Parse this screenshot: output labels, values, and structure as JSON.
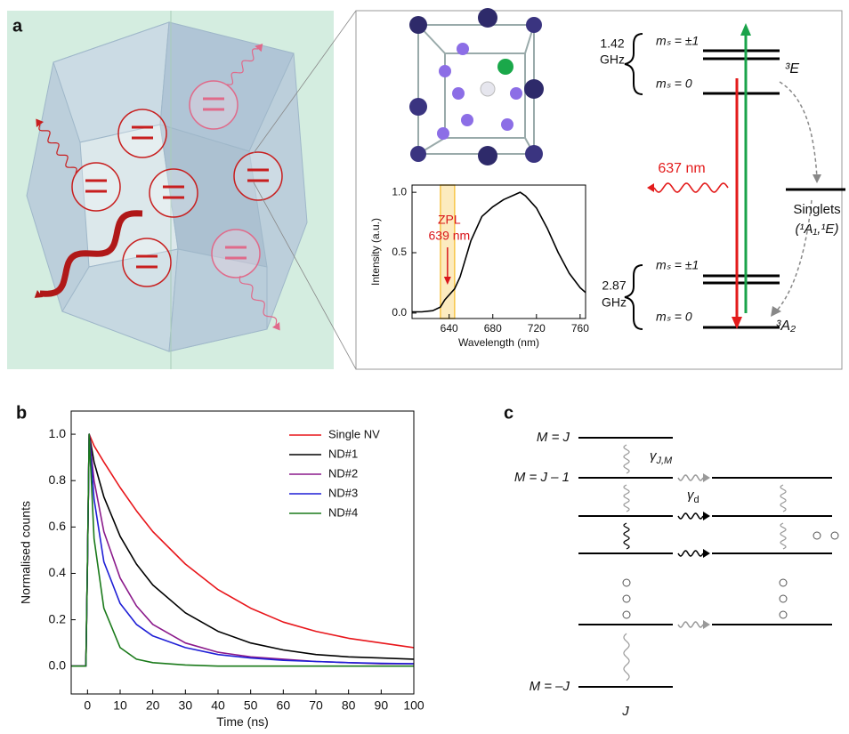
{
  "panel_labels": [
    "a",
    "b",
    "c"
  ],
  "energy_diagram": {
    "upper_splitting": "1.42",
    "upper_unit": "GHz",
    "upper_ms_pm1": "mₛ = ±1",
    "upper_ms_0": "mₛ = 0",
    "upper_state": "³E",
    "emission": "637 nm",
    "singlets": "Singlets",
    "singlet_states": "(¹A₁,¹E)",
    "lower_splitting": "2.87",
    "lower_unit": "GHz",
    "lower_ms_pm1": "mₛ = ±1",
    "lower_ms_0": "mₛ = 0",
    "lower_state": "³A₂"
  },
  "level_diagram": {
    "top_level": "M = J",
    "second_level": "M = J – 1",
    "bottom_level": "M = –J",
    "manifold": "J",
    "gamma_jm": {
      "symbol": "γ",
      "sub": "J,M"
    },
    "gamma_d": {
      "symbol": "γ",
      "sub": "d"
    }
  },
  "chart_data": [
    {
      "type": "line",
      "x_label": "Wavelength (nm)",
      "y_label": "Intensity (a.u.)",
      "annotation": "ZPL",
      "annotation_value": "639 nm",
      "annotation_color": "#d9161b",
      "highlight_band": [
        632,
        645
      ],
      "highlight_color": "#f7c548",
      "xlim": [
        606,
        765
      ],
      "ylim": [
        -0.045,
        1.06
      ],
      "xticks": [
        640,
        680,
        720,
        760
      ],
      "yticks": [
        {
          "value": 0,
          "label": "0.0"
        },
        0.5,
        {
          "value": 1,
          "label": "1.0"
        }
      ],
      "x": [
        606,
        615,
        625,
        632,
        636,
        640,
        645,
        650,
        655,
        660,
        670,
        680,
        690,
        700,
        705,
        710,
        720,
        730,
        740,
        750,
        760,
        765
      ],
      "series": [
        {
          "color": "#000000",
          "values": [
            0.01,
            0.01,
            0.02,
            0.05,
            0.11,
            0.15,
            0.2,
            0.3,
            0.45,
            0.6,
            0.8,
            0.88,
            0.94,
            0.98,
            1.0,
            0.97,
            0.87,
            0.7,
            0.5,
            0.33,
            0.21,
            0.17
          ]
        }
      ]
    },
    {
      "type": "line",
      "x_label": "Time (ns)",
      "y_label": "Normalised counts",
      "legend": "upper right",
      "xlim": [
        -5,
        100
      ],
      "ylim": [
        -0.12,
        1.1
      ],
      "xticks": [
        0,
        10,
        20,
        30,
        40,
        50,
        60,
        70,
        80,
        90,
        100
      ],
      "yticks": [
        {
          "value": 0,
          "label": "0.0"
        },
        0.2,
        0.4,
        0.6,
        0.8,
        {
          "value": 1,
          "label": "1.0"
        }
      ],
      "x": [
        -5,
        -0.5,
        0,
        0.5,
        2,
        5,
        10,
        15,
        20,
        30,
        40,
        50,
        60,
        70,
        80,
        90,
        100
      ],
      "series": [
        {
          "name": "Single NV",
          "color": "#e8161b",
          "values": [
            0,
            0,
            0.45,
            1.0,
            0.95,
            0.88,
            0.77,
            0.67,
            0.58,
            0.44,
            0.33,
            0.25,
            0.19,
            0.15,
            0.12,
            0.1,
            0.08
          ]
        },
        {
          "name": "ND#1",
          "color": "#000000",
          "values": [
            0,
            0,
            0.45,
            1.0,
            0.88,
            0.73,
            0.56,
            0.44,
            0.35,
            0.23,
            0.15,
            0.1,
            0.07,
            0.05,
            0.04,
            0.035,
            0.03
          ]
        },
        {
          "name": "ND#2",
          "color": "#8b1a8b",
          "values": [
            0,
            0,
            0.45,
            1.0,
            0.8,
            0.58,
            0.38,
            0.26,
            0.18,
            0.1,
            0.06,
            0.04,
            0.03,
            0.02,
            0.015,
            0.01,
            0.01
          ]
        },
        {
          "name": "ND#3",
          "color": "#1f1fd6",
          "values": [
            0,
            0,
            0.45,
            1.0,
            0.72,
            0.45,
            0.27,
            0.18,
            0.13,
            0.08,
            0.05,
            0.035,
            0.025,
            0.02,
            0.015,
            0.012,
            0.01
          ]
        },
        {
          "name": "ND#4",
          "color": "#1a7a1a",
          "values": [
            0,
            0,
            0.45,
            1.0,
            0.55,
            0.25,
            0.08,
            0.03,
            0.015,
            0.005,
            0,
            0,
            0,
            0,
            0,
            0,
            0
          ]
        }
      ]
    }
  ]
}
